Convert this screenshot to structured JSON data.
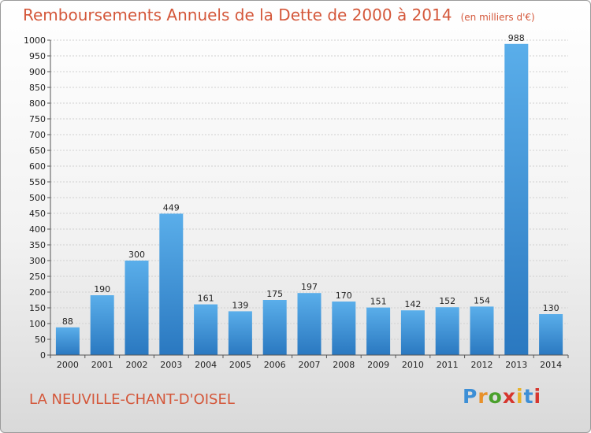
{
  "title": {
    "main": "Remboursements Annuels de la Dette de 2000 à 2014",
    "unit": "(en milliers d'€)"
  },
  "commune": "LA NEUVILLE-CHANT-D'OISEL",
  "logo": {
    "text": "Proxiti",
    "letter_colors": [
      "#3d8fd6",
      "#e8912a",
      "#4aa02c",
      "#d6362e",
      "#e8b22a",
      "#3d8fd6",
      "#d6362e"
    ]
  },
  "colors": {
    "bar_top": "#5aaeea",
    "bar_bottom": "#2a78c0",
    "title": "#d4573a"
  },
  "chart_data": {
    "type": "bar",
    "categories": [
      "2000",
      "2001",
      "2002",
      "2003",
      "2004",
      "2005",
      "2006",
      "2007",
      "2008",
      "2009",
      "2010",
      "2011",
      "2012",
      "2013",
      "2014"
    ],
    "values": [
      88,
      190,
      300,
      449,
      161,
      139,
      175,
      197,
      170,
      151,
      142,
      152,
      154,
      988,
      130
    ],
    "ylim": [
      0,
      1000
    ],
    "ytick_step": 50,
    "grid": true,
    "legend": "none"
  }
}
